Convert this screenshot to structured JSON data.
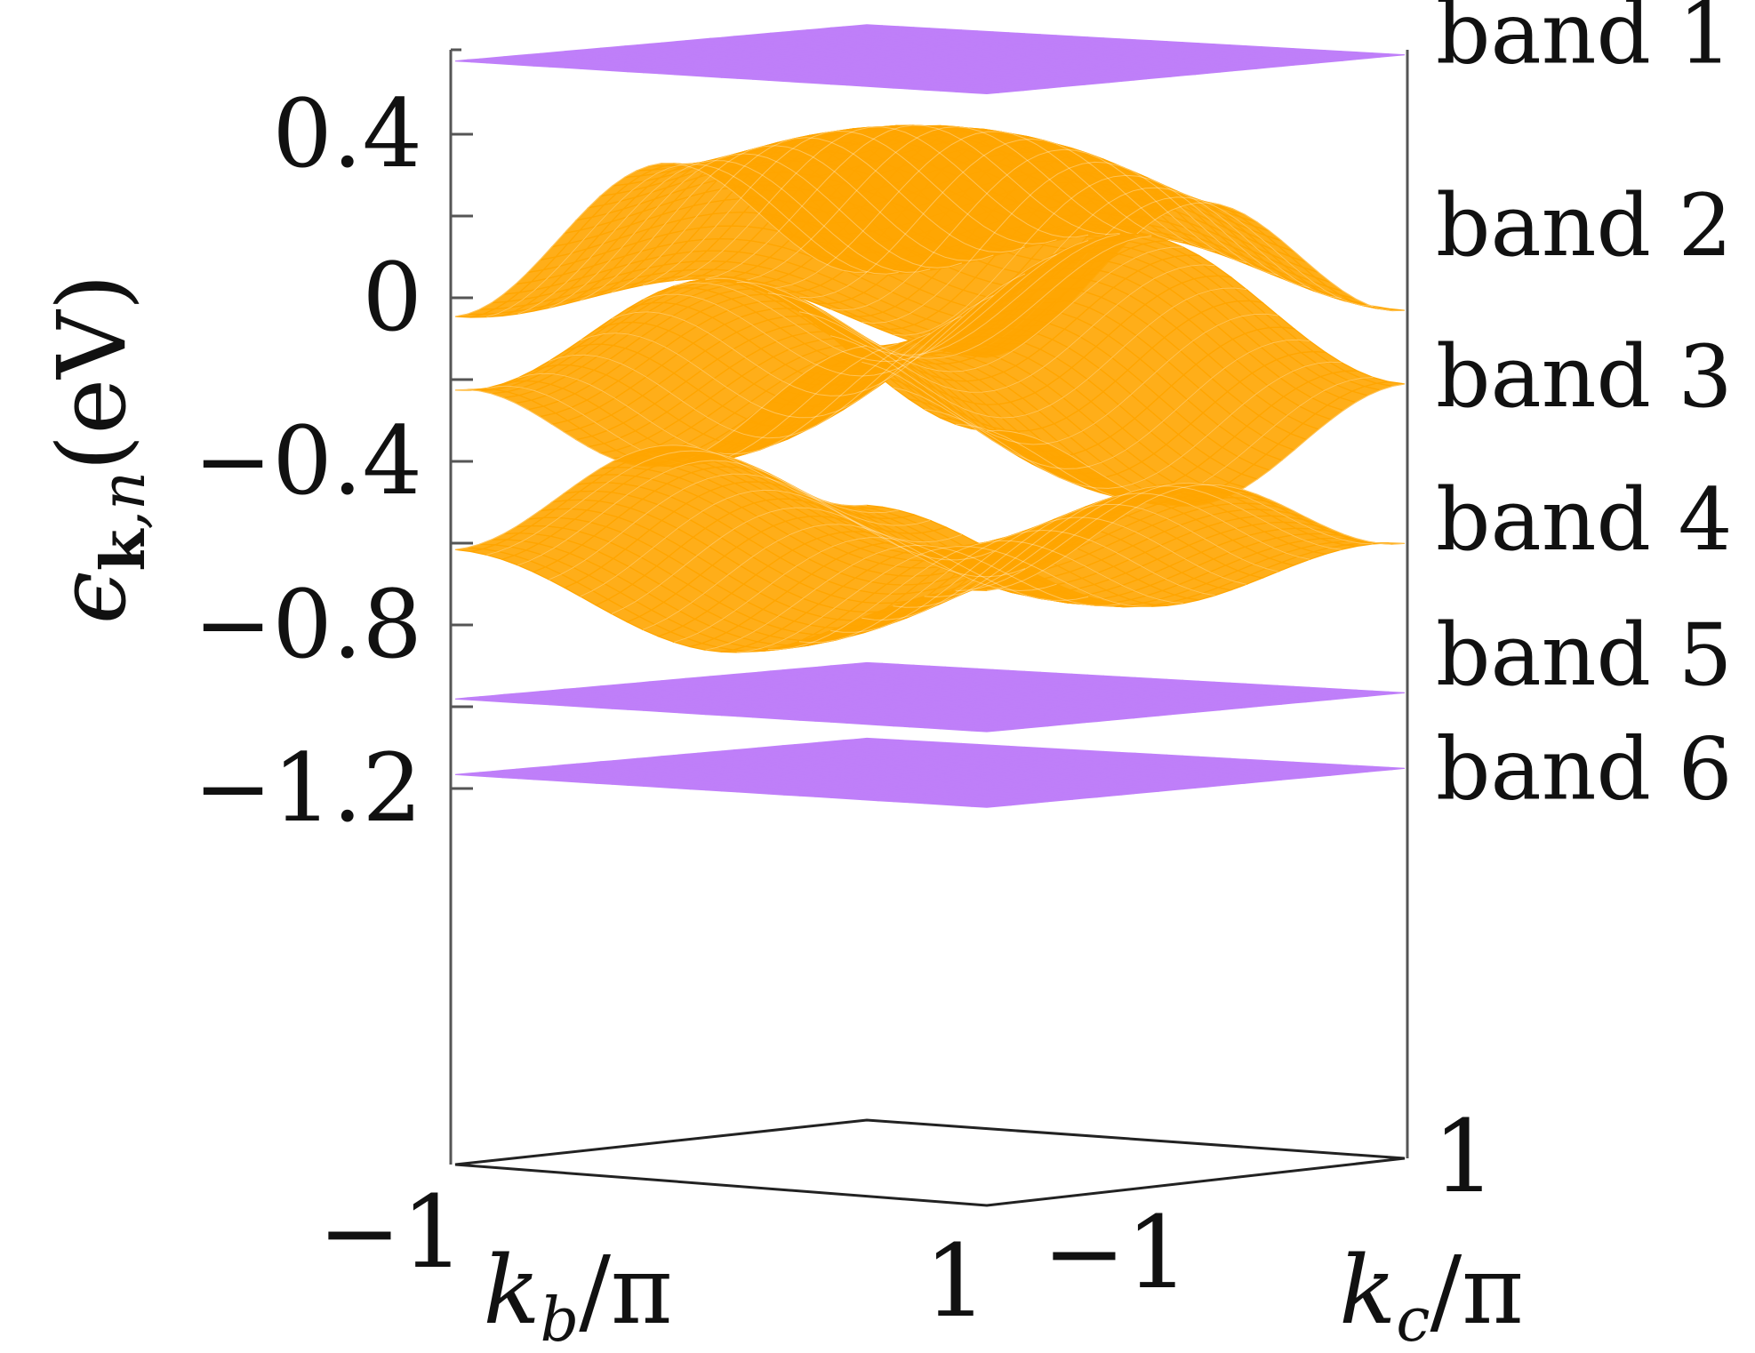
{
  "chart_data": {
    "type": "surface-3d",
    "zlabel": {
      "symbol": "ϵ",
      "sub_bold": "k",
      "sub_rest": ",n",
      "unit": "(eV)"
    },
    "xlabel": {
      "symbol": "k",
      "sub": "b",
      "rest": "/π"
    },
    "ylabel": {
      "symbol": "k",
      "sub": "c",
      "rest": "/π"
    },
    "zlim": [
      -1.3,
      0.6
    ],
    "z_ticks": [
      -1.2,
      -1.0,
      -0.8,
      -0.6,
      -0.4,
      -0.2,
      0,
      0.2,
      0.4
    ],
    "z_tick_labels": [
      {
        "value": -1.2,
        "label": "−1.2"
      },
      {
        "value": -0.8,
        "label": "−0.8"
      },
      {
        "value": -0.4,
        "label": "−0.4"
      },
      {
        "value": 0,
        "label": "0"
      },
      {
        "value": 0.4,
        "label": "0.4"
      }
    ],
    "kb_ticks": [
      {
        "value": -1,
        "label": "−1"
      },
      {
        "value": 1,
        "label": "1"
      }
    ],
    "kc_ticks": [
      {
        "value": -1,
        "label": "−1"
      },
      {
        "value": 1,
        "label": "1"
      }
    ],
    "colors": {
      "flat": "#bf7ff9",
      "dispersive": "#ffa500",
      "axis": "#555555"
    },
    "bands": [
      {
        "name": "band 1",
        "kind": "flat",
        "center": 0.585,
        "half_range": 0.05,
        "label_value": 0.64
      },
      {
        "name": "band 2",
        "kind": "dispersive",
        "center": 0.19,
        "amp_b": 0.07,
        "amp_c": 0.16,
        "label_value": 0.17
      },
      {
        "name": "band 3",
        "kind": "dispersive",
        "center": -0.18,
        "amp_b": 0.16,
        "amp_c": -0.12,
        "label_value": -0.2
      },
      {
        "name": "band 4",
        "kind": "dispersive",
        "center": -0.61,
        "amp_b": -0.1,
        "amp_c": 0.1,
        "label_value": -0.55
      },
      {
        "name": "band 5",
        "kind": "flat",
        "center": -0.975,
        "half_range": 0.05,
        "label_value": -0.88
      },
      {
        "name": "band 6",
        "kind": "flat",
        "center": -1.16,
        "half_range": 0.05,
        "label_value": -1.16
      }
    ]
  }
}
